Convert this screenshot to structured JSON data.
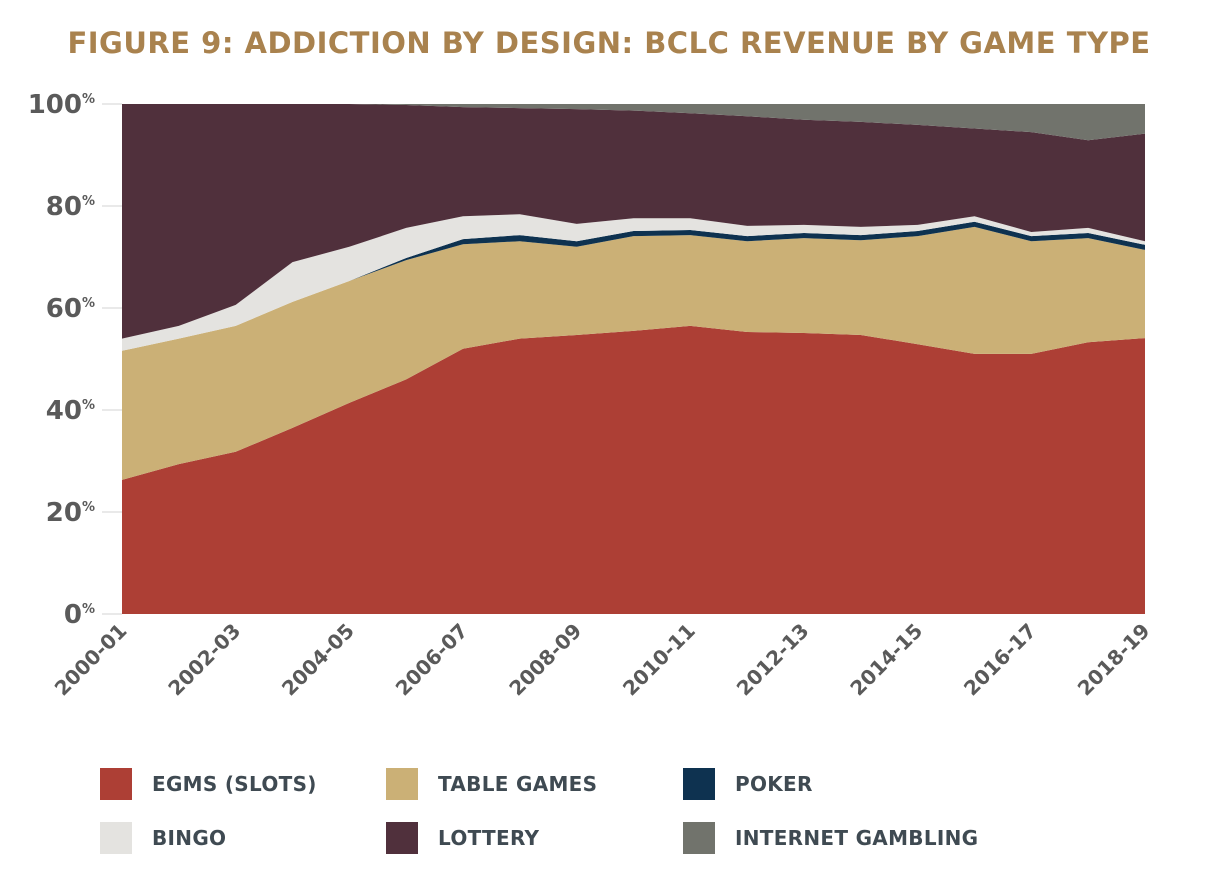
{
  "title": "FIGURE 9: ADDICTION BY DESIGN: BCLC REVENUE BY GAME TYPE",
  "chart_data": {
    "type": "area",
    "stacked": true,
    "title": "FIGURE 9: ADDICTION BY DESIGN: BCLC REVENUE BY GAME TYPE",
    "xlabel": "",
    "ylabel": "",
    "ylim": [
      0,
      100
    ],
    "y_ticks": [
      {
        "value": 0,
        "label": "0",
        "suffix": "%"
      },
      {
        "value": 20,
        "label": "20",
        "suffix": "%"
      },
      {
        "value": 40,
        "label": "40",
        "suffix": "%"
      },
      {
        "value": 60,
        "label": "60",
        "suffix": "%"
      },
      {
        "value": 80,
        "label": "80",
        "suffix": "%"
      },
      {
        "value": 100,
        "label": "100",
        "suffix": "%"
      }
    ],
    "x": [
      "2000-01",
      "2001-02",
      "2002-03",
      "2003-04",
      "2004-05",
      "2005-06",
      "2006-07",
      "2007-08",
      "2008-09",
      "2009-10",
      "2010-11",
      "2011-12",
      "2012-13",
      "2013-14",
      "2014-15",
      "2015-16",
      "2016-17",
      "2017-18",
      "2018-19"
    ],
    "x_tick_labels": [
      "2000-01",
      "2002-03",
      "2004-05",
      "2006-07",
      "2008-09",
      "2010-11",
      "2012-13",
      "2014-15",
      "2016-17",
      "2018-19"
    ],
    "grid": false,
    "legend_position": "bottom",
    "series": [
      {
        "name": "EGMS (SLOTS)",
        "color": "#ad3f35",
        "values": [
          26.3,
          29.4,
          31.8,
          36.5,
          41.4,
          46.0,
          52.0,
          54.0,
          54.7,
          55.5,
          56.5,
          55.3,
          55.1,
          54.7,
          52.9,
          51.0,
          51.0,
          53.3,
          54.1
        ]
      },
      {
        "name": "TABLE GAMES",
        "color": "#cbb076",
        "values": [
          25.3,
          24.6,
          24.7,
          24.7,
          23.9,
          23.4,
          20.5,
          19.1,
          17.3,
          18.6,
          17.8,
          17.8,
          18.6,
          18.6,
          21.2,
          24.9,
          22.1,
          20.4,
          17.3
        ]
      },
      {
        "name": "POKER",
        "color": "#0e3250",
        "values": [
          0,
          0,
          0,
          0,
          0,
          0.4,
          1.0,
          1.2,
          1.1,
          1.0,
          1.0,
          1.0,
          1.0,
          1.0,
          1.0,
          1.0,
          1.0,
          1.0,
          1.0
        ]
      },
      {
        "name": "BINGO",
        "color": "#e4e3e0",
        "values": [
          2.4,
          2.5,
          4.1,
          7.8,
          6.7,
          5.9,
          4.5,
          4.1,
          3.4,
          2.5,
          2.3,
          2.0,
          1.6,
          1.6,
          1.2,
          1.1,
          0.8,
          1.0,
          0.7
        ]
      },
      {
        "name": "LOTTERY",
        "color": "#50303c",
        "values": [
          46.0,
          43.5,
          39.4,
          31.0,
          28.0,
          24.1,
          21.4,
          20.8,
          22.5,
          21.1,
          20.6,
          21.5,
          20.6,
          20.6,
          19.6,
          17.2,
          19.6,
          17.2,
          21.1
        ]
      },
      {
        "name": "INTERNET GAMBLING",
        "color": "#71736c",
        "values": [
          0,
          0,
          0,
          0,
          0,
          0.2,
          0.6,
          0.8,
          1.0,
          1.3,
          1.8,
          2.4,
          3.1,
          3.5,
          4.1,
          4.8,
          5.5,
          7.1,
          5.8
        ]
      }
    ]
  },
  "legend": [
    {
      "label": "EGMS (SLOTS)",
      "color": "#ad3f35"
    },
    {
      "label": "TABLE GAMES",
      "color": "#cbb076"
    },
    {
      "label": "POKER",
      "color": "#0e3250"
    },
    {
      "label": "BINGO",
      "color": "#e4e3e0"
    },
    {
      "label": "LOTTERY",
      "color": "#50303c"
    },
    {
      "label": "INTERNET GAMBLING",
      "color": "#71736c"
    }
  ]
}
